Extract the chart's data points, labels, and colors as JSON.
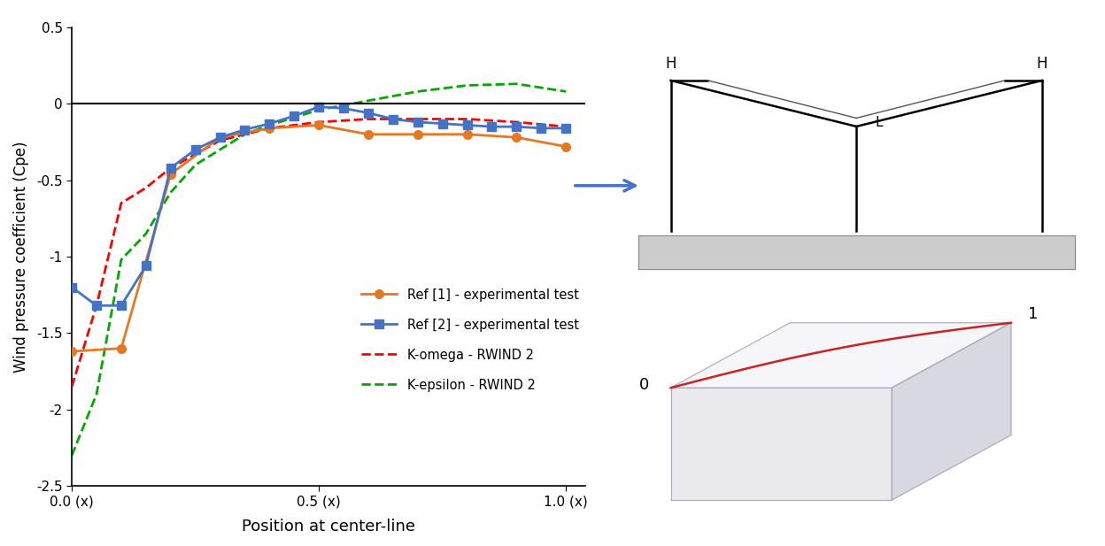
{
  "ref1_x": [
    0.0,
    0.1,
    0.2,
    0.3,
    0.4,
    0.5,
    0.6,
    0.7,
    0.8,
    0.9,
    1.0
  ],
  "ref1_y": [
    -1.62,
    -1.6,
    -0.46,
    -0.22,
    -0.16,
    -0.14,
    -0.2,
    -0.2,
    -0.2,
    -0.22,
    -0.28
  ],
  "ref2_x": [
    0.0,
    0.05,
    0.1,
    0.15,
    0.2,
    0.25,
    0.3,
    0.35,
    0.4,
    0.45,
    0.5,
    0.55,
    0.6,
    0.65,
    0.7,
    0.75,
    0.8,
    0.85,
    0.9,
    0.95,
    1.0
  ],
  "ref2_y": [
    -1.2,
    -1.32,
    -1.32,
    -1.06,
    -0.42,
    -0.3,
    -0.22,
    -0.17,
    -0.13,
    -0.08,
    -0.02,
    -0.03,
    -0.06,
    -0.1,
    -0.12,
    -0.13,
    -0.14,
    -0.15,
    -0.15,
    -0.16,
    -0.16
  ],
  "komega_x": [
    0.0,
    0.05,
    0.1,
    0.15,
    0.2,
    0.25,
    0.3,
    0.35,
    0.4,
    0.5,
    0.6,
    0.7,
    0.8,
    0.9,
    1.0
  ],
  "komega_y": [
    -1.85,
    -1.32,
    -0.65,
    -0.55,
    -0.42,
    -0.33,
    -0.24,
    -0.2,
    -0.16,
    -0.12,
    -0.1,
    -0.1,
    -0.1,
    -0.12,
    -0.15
  ],
  "kepsilon_x": [
    0.0,
    0.05,
    0.1,
    0.15,
    0.2,
    0.25,
    0.3,
    0.35,
    0.4,
    0.5,
    0.6,
    0.7,
    0.8,
    0.9,
    1.0
  ],
  "kepsilon_y": [
    -2.3,
    -1.9,
    -1.02,
    -0.85,
    -0.58,
    -0.4,
    -0.3,
    -0.2,
    -0.14,
    -0.04,
    0.02,
    0.08,
    0.12,
    0.13,
    0.08
  ],
  "ref1_color": "#E87722",
  "ref2_color": "#4472C4",
  "komega_color": "#FF0000",
  "kepsilon_color": "#00AA00",
  "xlabel": "Position at center-line",
  "ylabel": "Wind pressure coefficient (Cpe)",
  "xlim": [
    0.0,
    1.04
  ],
  "ylim": [
    -2.5,
    0.5
  ],
  "yticks": [
    0.5,
    0.0,
    -0.5,
    -1.0,
    -1.5,
    -2.0,
    -2.5
  ],
  "xtick_labels": [
    "0.0 (x)",
    "0.5 (x)",
    "1.0 (x)"
  ],
  "xtick_positions": [
    0.0,
    0.5,
    1.0
  ],
  "legend_ref1": "Ref [1] - experimental test",
  "legend_ref2": "Ref [2] - experimental test",
  "legend_komega": "K-omega - RWIND 2",
  "legend_kepsilon": "K-epsilon - RWIND 2",
  "background_color": "#FFFFFF",
  "arrow_color": "#4472C4",
  "roof_color_fill": "#CCCCCC",
  "box_front_color": "#EAEAEE",
  "box_top_color": "#F5F5FA",
  "box_right_color": "#D8D8E0",
  "box_edge_color": "#AAAABC",
  "centerline_color": "#CC2222"
}
